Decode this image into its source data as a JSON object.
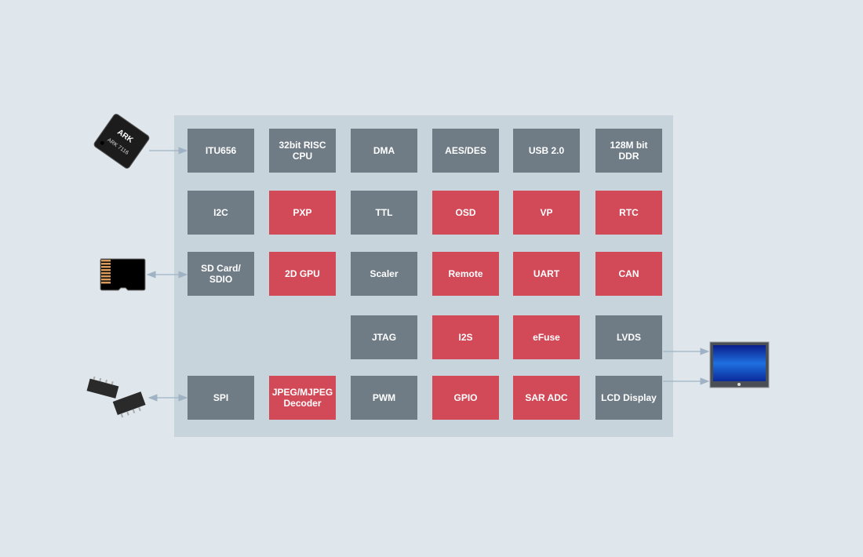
{
  "colors": {
    "background": "#dfe6ec",
    "panel": "#c8d4dc",
    "standard_block": "#6f7c86",
    "highlight_block": "#d24a58",
    "arrow": "#9fb3c4"
  },
  "grid": [
    [
      {
        "label": "ITU656",
        "highlight": false
      },
      {
        "label": "32bit RISC\nCPU",
        "highlight": false
      },
      {
        "label": "DMA",
        "highlight": false
      },
      {
        "label": "AES/DES",
        "highlight": false
      },
      {
        "label": "USB 2.0",
        "highlight": false
      },
      {
        "label": "128M bit\nDDR",
        "highlight": false
      }
    ],
    [
      {
        "label": "I2C",
        "highlight": false
      },
      {
        "label": "PXP",
        "highlight": true
      },
      {
        "label": "TTL",
        "highlight": false
      },
      {
        "label": "OSD",
        "highlight": true
      },
      {
        "label": "VP",
        "highlight": true
      },
      {
        "label": "RTC",
        "highlight": true
      }
    ],
    [
      {
        "label": "SD Card/\nSDIO",
        "highlight": false
      },
      {
        "label": "2D GPU",
        "highlight": true
      },
      {
        "label": "Scaler",
        "highlight": false
      },
      {
        "label": "Remote",
        "highlight": true
      },
      {
        "label": "UART",
        "highlight": true
      },
      {
        "label": "CAN",
        "highlight": true
      }
    ],
    [
      null,
      null,
      {
        "label": "JTAG",
        "highlight": false
      },
      {
        "label": "I2S",
        "highlight": true
      },
      {
        "label": "eFuse",
        "highlight": true
      },
      {
        "label": "LVDS",
        "highlight": false
      }
    ],
    [
      {
        "label": "SPI",
        "highlight": false
      },
      {
        "label": "JPEG/MJPEG\nDecoder",
        "highlight": true
      },
      {
        "label": "PWM",
        "highlight": false
      },
      {
        "label": "GPIO",
        "highlight": true
      },
      {
        "label": "SAR ADC",
        "highlight": true
      },
      {
        "label": "LCD Display",
        "highlight": false
      }
    ]
  ],
  "peripherals": {
    "chip": {
      "logo_text": "ARK",
      "model": "ARK 7116"
    },
    "sd_card": {
      "icon": "microsd-card-icon"
    },
    "flash": {
      "icon": "soic8-flash-chip-icon"
    },
    "monitor": {
      "icon": "lcd-monitor-icon"
    }
  }
}
